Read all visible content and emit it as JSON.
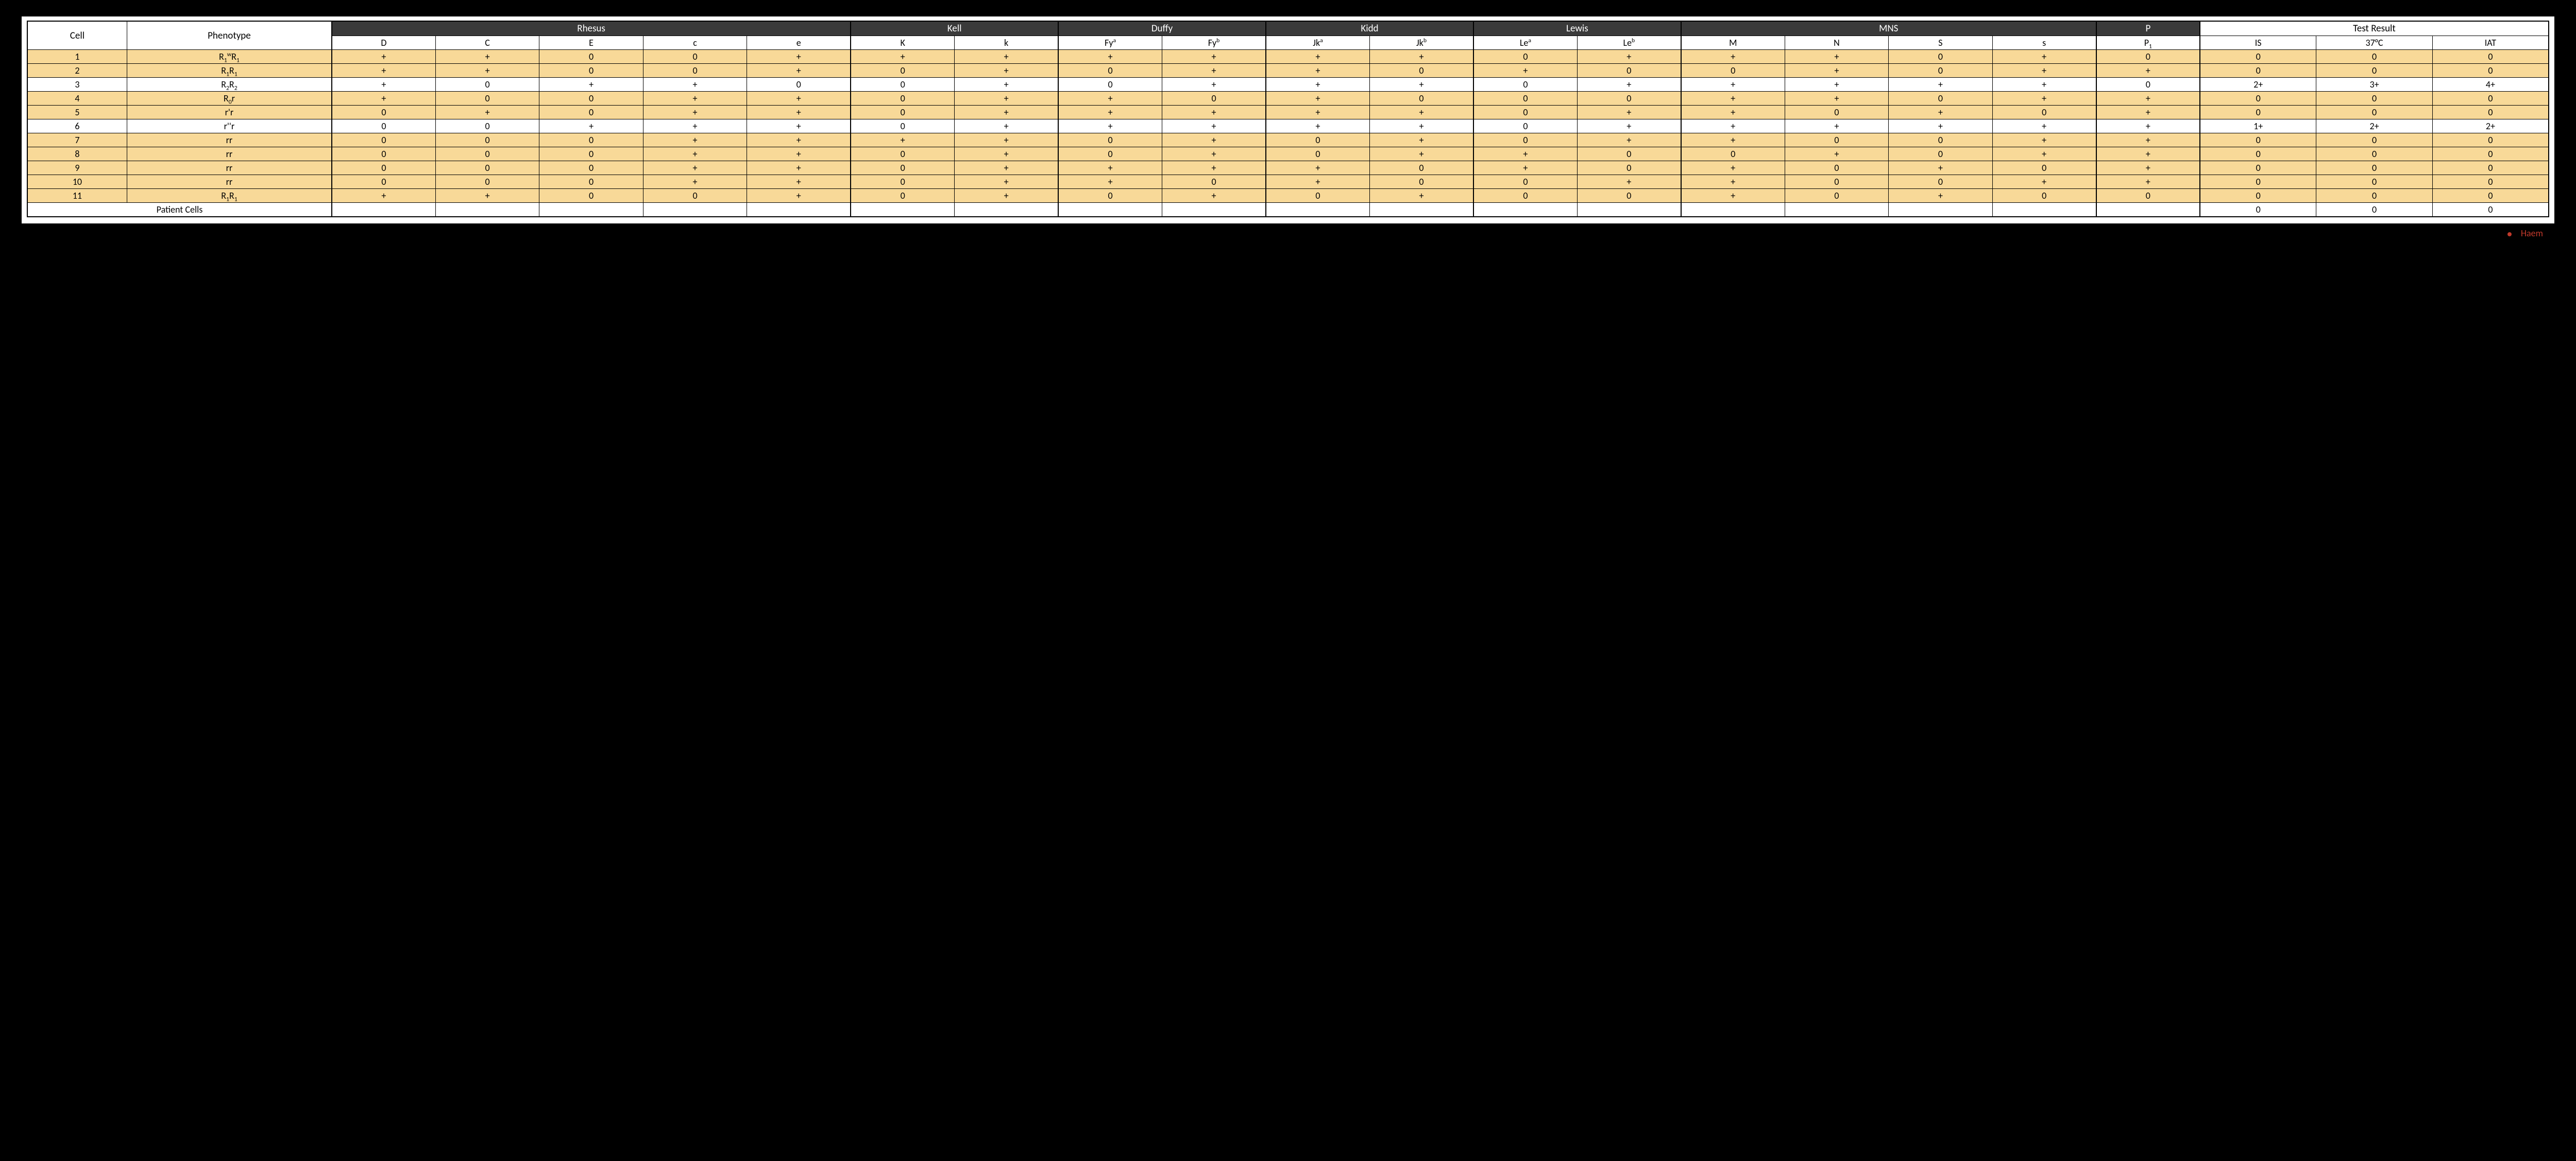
{
  "table": {
    "id_headers": {
      "cell": "Cell",
      "phenotype": "Phenotype"
    },
    "groups": [
      {
        "label": "Rhesus",
        "antigens": [
          "D",
          "C",
          "E",
          "c",
          "e"
        ]
      },
      {
        "label": "Kell",
        "antigens": [
          "K",
          "k"
        ]
      },
      {
        "label": "Duffy",
        "antigens": [
          "Fy^a",
          "Fy^b"
        ]
      },
      {
        "label": "Kidd",
        "antigens": [
          "Jk^a",
          "Jk^b"
        ]
      },
      {
        "label": "Lewis",
        "antigens": [
          "Le^a",
          "Le^b"
        ]
      },
      {
        "label": "MNS",
        "antigens": [
          "M",
          "N",
          "S",
          "s"
        ]
      },
      {
        "label": "P",
        "antigens": [
          "P_1"
        ]
      }
    ],
    "test_result": {
      "label": "Test Result",
      "columns": [
        "IS",
        "37°C",
        "IAT"
      ]
    },
    "rows": [
      {
        "cell": "1",
        "phenotype": "R_1^wR_1",
        "shade": true,
        "ag": [
          "+",
          "+",
          "0",
          "0",
          "+",
          "+",
          "+",
          "+",
          "+",
          "+",
          "+",
          "0",
          "+",
          "+",
          "+",
          "0",
          "+",
          "0"
        ],
        "res": [
          "0",
          "0",
          "0"
        ]
      },
      {
        "cell": "2",
        "phenotype": "R_1R_1",
        "shade": true,
        "ag": [
          "+",
          "+",
          "0",
          "0",
          "+",
          "0",
          "+",
          "0",
          "+",
          "+",
          "0",
          "+",
          "0",
          "0",
          "+",
          "0",
          "+",
          "+"
        ],
        "res": [
          "0",
          "0",
          "0"
        ]
      },
      {
        "cell": "3",
        "phenotype": "R_2R_2",
        "shade": false,
        "ag": [
          "+",
          "0",
          "+",
          "+",
          "0",
          "0",
          "+",
          "0",
          "+",
          "+",
          "+",
          "0",
          "+",
          "+",
          "+",
          "+",
          "+",
          "0"
        ],
        "res": [
          "2+",
          "3+",
          "4+"
        ]
      },
      {
        "cell": "4",
        "phenotype": "R_0r",
        "shade": true,
        "ag": [
          "+",
          "0",
          "0",
          "+",
          "+",
          "0",
          "+",
          "+",
          "0",
          "+",
          "0",
          "0",
          "0",
          "+",
          "+",
          "0",
          "+",
          "+"
        ],
        "res": [
          "0",
          "0",
          "0"
        ]
      },
      {
        "cell": "5",
        "phenotype": "r'r",
        "shade": true,
        "ag": [
          "0",
          "+",
          "0",
          "+",
          "+",
          "0",
          "+",
          "+",
          "+",
          "+",
          "+",
          "0",
          "+",
          "+",
          "0",
          "+",
          "0",
          "+"
        ],
        "res": [
          "0",
          "0",
          "0"
        ]
      },
      {
        "cell": "6",
        "phenotype": "r''r",
        "shade": false,
        "ag": [
          "0",
          "0",
          "+",
          "+",
          "+",
          "0",
          "+",
          "+",
          "+",
          "+",
          "+",
          "0",
          "+",
          "+",
          "+",
          "+",
          "+",
          "+"
        ],
        "res": [
          "1+",
          "2+",
          "2+"
        ]
      },
      {
        "cell": "7",
        "phenotype": "rr",
        "shade": true,
        "ag": [
          "0",
          "0",
          "0",
          "+",
          "+",
          "+",
          "+",
          "0",
          "+",
          "0",
          "+",
          "0",
          "+",
          "+",
          "0",
          "0",
          "+",
          "+"
        ],
        "res": [
          "0",
          "0",
          "0"
        ]
      },
      {
        "cell": "8",
        "phenotype": "rr",
        "shade": true,
        "ag": [
          "0",
          "0",
          "0",
          "+",
          "+",
          "0",
          "+",
          "0",
          "+",
          "0",
          "+",
          "+",
          "0",
          "0",
          "+",
          "0",
          "+",
          "+"
        ],
        "res": [
          "0",
          "0",
          "0"
        ]
      },
      {
        "cell": "9",
        "phenotype": "rr",
        "shade": true,
        "ag": [
          "0",
          "0",
          "0",
          "+",
          "+",
          "0",
          "+",
          "+",
          "+",
          "+",
          "0",
          "+",
          "0",
          "+",
          "0",
          "+",
          "0",
          "+"
        ],
        "res": [
          "0",
          "0",
          "0"
        ]
      },
      {
        "cell": "10",
        "phenotype": "rr",
        "shade": true,
        "ag": [
          "0",
          "0",
          "0",
          "+",
          "+",
          "0",
          "+",
          "+",
          "0",
          "+",
          "0",
          "0",
          "+",
          "+",
          "0",
          "0",
          "+",
          "+"
        ],
        "res": [
          "0",
          "0",
          "0"
        ]
      },
      {
        "cell": "11",
        "phenotype": "R_1R_1",
        "shade": true,
        "ag": [
          "+",
          "+",
          "0",
          "0",
          "+",
          "0",
          "+",
          "0",
          "+",
          "0",
          "+",
          "0",
          "0",
          "+",
          "0",
          "+",
          "0",
          "0"
        ],
        "res": [
          "0",
          "0",
          "0"
        ]
      }
    ],
    "patient_row": {
      "label": "Patient Cells",
      "res": [
        "0",
        "0",
        "0"
      ]
    },
    "section_starts": [
      0,
      5,
      7,
      9,
      11,
      13,
      17,
      18
    ],
    "colors": {
      "page_bg": "#000000",
      "panel_bg": "#ffffff",
      "header_bg": "#3a3a3a",
      "header_fg": "#ffffff",
      "row_shade": "#f8d998",
      "row_plain": "#ffffff",
      "border": "#000000",
      "footer_text": "#c0392b"
    },
    "typography": {
      "font_family": "Calibri / Segoe UI",
      "header_fontsize_pt": 14,
      "body_fontsize_pt": 13
    }
  },
  "footer": {
    "label": "Haem"
  }
}
